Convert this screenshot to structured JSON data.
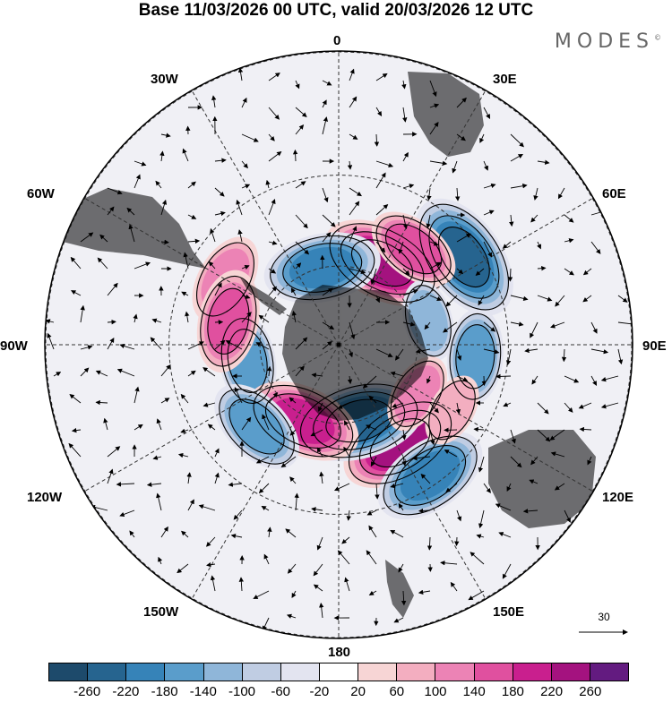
{
  "title": "Base 11/03/2026 00 UTC, valid 20/03/2026 12 UTC",
  "brand": "MODES",
  "brand_mark": "©",
  "longitudes": {
    "top": "0",
    "top_right": "30E",
    "right_upper": "60E",
    "right": "90E",
    "right_lower": "120E",
    "bottom_right": "150E",
    "bottom": "180",
    "bottom_left": "150W",
    "left_lower": "120W",
    "left": "90W",
    "left_upper": "60W",
    "top_left": "30W"
  },
  "vector_reference": {
    "label": "30"
  },
  "colorbar": {
    "colors": [
      "#1d4a6b",
      "#26648f",
      "#3683b8",
      "#5a9dcb",
      "#8fb6d9",
      "#c0cde3",
      "#e3e4f0",
      "#ffffff",
      "#f7d5d5",
      "#f3aec0",
      "#ec83b5",
      "#e0509f",
      "#c91f8e",
      "#a4127f",
      "#631b80"
    ],
    "labels": [
      "-260",
      "-220",
      "-180",
      "-140",
      "-100",
      "-60",
      "-20",
      "20",
      "60",
      "100",
      "140",
      "180",
      "220",
      "260"
    ]
  },
  "colors": {
    "land": "#c9c9c9",
    "contour": "#000000",
    "grid": "#333333"
  },
  "anomalies": [
    {
      "lon": 28,
      "lat": 55,
      "value": 220,
      "peak": 260
    },
    {
      "lon": -12,
      "lat": 60,
      "value": -200
    },
    {
      "lon": 55,
      "lat": 35,
      "value": -240
    },
    {
      "lon": 38,
      "lat": 45,
      "value": 140
    },
    {
      "lon": -60,
      "lat": 42,
      "value": 130
    },
    {
      "lon": -100,
      "lat": 55,
      "value": -140
    },
    {
      "lon": -78,
      "lat": 48,
      "value": 160
    },
    {
      "lon": 148,
      "lat": 47,
      "value": 220
    },
    {
      "lon": 165,
      "lat": 60,
      "value": -240
    },
    {
      "lon": -155,
      "lat": 58,
      "value": 200
    },
    {
      "lon": -135,
      "lat": 47,
      "value": -160
    },
    {
      "lon": 95,
      "lat": 40,
      "value": -140
    },
    {
      "lon": 75,
      "lat": 55,
      "value": -100
    },
    {
      "lon": 122,
      "lat": 55,
      "value": 100
    },
    {
      "lon": 145,
      "lat": 33,
      "value": -200
    },
    {
      "lon": 120,
      "lat": 42,
      "value": 80
    }
  ]
}
